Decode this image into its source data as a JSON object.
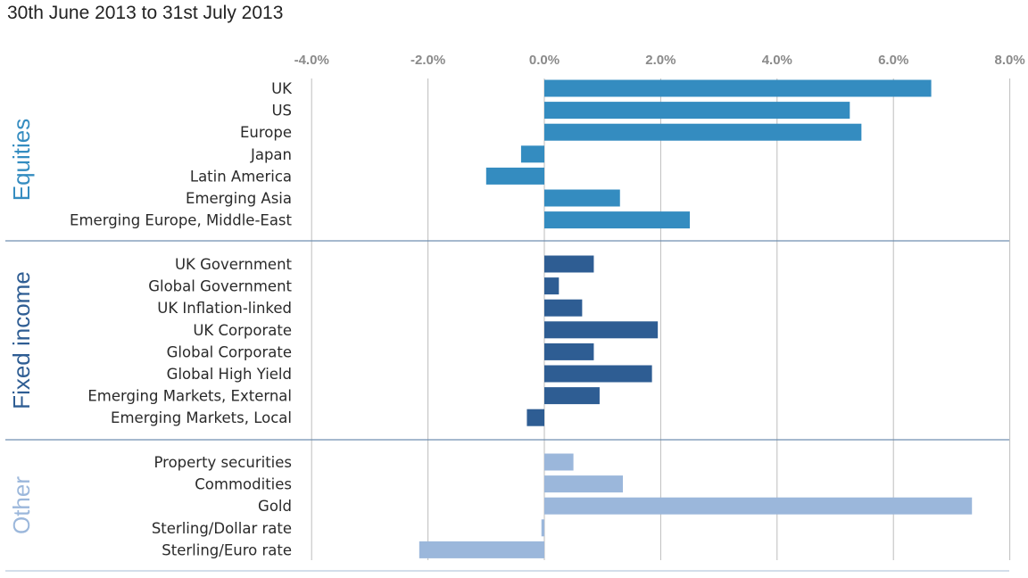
{
  "chart_data": {
    "type": "bar",
    "orientation": "horizontal",
    "title": "30th June 2013 to 31st July 2013",
    "x_ticks": [
      "-4.0%",
      "-2.0%",
      "0.0%",
      "2.0%",
      "4.0%",
      "6.0%",
      "8.0%"
    ],
    "xlim": [
      -4.0,
      8.0
    ],
    "unit": "%",
    "grid": true,
    "groups": [
      {
        "name": "Equities",
        "color": "#348cc0",
        "categories": [
          "UK",
          "US",
          "Europe",
          "Japan",
          "Latin America",
          "Emerging Asia",
          "Emerging Europe, Middle-East"
        ],
        "values": [
          6.65,
          5.25,
          5.45,
          -0.4,
          -1.0,
          1.3,
          2.5
        ]
      },
      {
        "name": "Fixed income",
        "color": "#2e5d93",
        "categories": [
          "UK Government",
          "Global Government",
          "UK Inflation-linked",
          "UK Corporate",
          "Global Corporate",
          "Global High Yield",
          "Emerging Markets, External",
          "Emerging Markets, Local"
        ],
        "values": [
          0.85,
          0.25,
          0.65,
          1.95,
          0.85,
          1.85,
          0.95,
          -0.3
        ]
      },
      {
        "name": "Other",
        "color": "#9bb7db",
        "categories": [
          "Property securities",
          "Commodities",
          "Gold",
          "Sterling/Dollar rate",
          "Sterling/Euro rate"
        ],
        "values": [
          0.5,
          1.35,
          7.35,
          -0.05,
          -2.15
        ]
      }
    ]
  }
}
